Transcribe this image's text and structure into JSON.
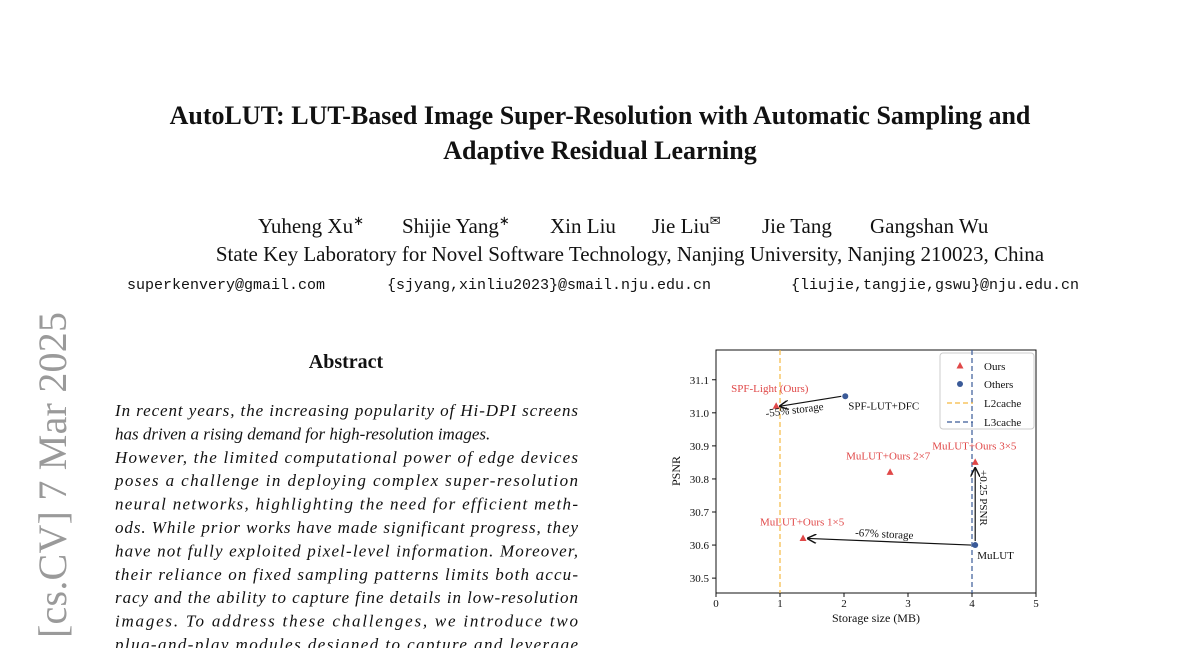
{
  "header": {
    "title_lines": [
      "AutoLUT: LUT-Based Image Super-Resolution with Automatic Sampling and",
      "Adaptive Residual Learning"
    ],
    "authors": [
      {
        "name": "Yuheng Xu",
        "mark": "∗"
      },
      {
        "name": "Shijie Yang",
        "mark": "∗"
      },
      {
        "name": "Xin Liu"
      },
      {
        "name": "Jie Liu",
        "mark": "✉"
      },
      {
        "name": "Jie Tang"
      },
      {
        "name": "Gangshan Wu"
      }
    ],
    "affiliation": "State Key Laboratory for Novel Software Technology, Nanjing University, Nanjing 210023, China",
    "emails": [
      "superkenvery@gmail.com",
      "{sjyang,xinliu2023}@smail.nju.edu.cn",
      "{liujie,tangjie,gswu}@nju.edu.cn"
    ]
  },
  "sidebar": "[cs.CV]  7 Mar 2025",
  "abstract": {
    "heading": "Abstract",
    "lines": [
      "In recent years, the increasing popularity of Hi-DPI screens",
      "has driven a rising demand for high-resolution images.",
      "However, the limited computational power of edge devices",
      "poses a challenge in deploying complex super-resolution",
      "neural networks, highlighting the need for efficient meth-",
      "ods. While prior works have made significant progress, they",
      "have not fully exploited pixel-level information. Moreover,",
      "their reliance on fixed sampling patterns limits both accu-",
      "racy and the ability to capture fine details in low-resolution",
      "images. To address these challenges, we introduce two",
      "plug-and-play modules designed to capture and leverage"
    ]
  },
  "chart_data": {
    "type": "scatter",
    "xlabel": "Storage size (MB)",
    "ylabel": "PSNR",
    "xlim": [
      0,
      5
    ],
    "ylim": [
      30.455,
      31.19
    ],
    "xticks": [
      0,
      1,
      2,
      3,
      4,
      5
    ],
    "yticks": [
      30.5,
      30.6,
      30.7,
      30.8,
      30.9,
      {
        "value": 31,
        "label": "31.0"
      },
      31.1
    ],
    "series": [
      {
        "name": "Ours",
        "color": "#e04848",
        "marker": "triangle",
        "x": [
          0.94,
          2.72,
          4.05,
          1.36
        ],
        "values": [
          31.02,
          30.82,
          30.85,
          30.62
        ],
        "point_labels": [
          "SPF-Light (Ours)",
          "MuLUT+Ours 2×7",
          "MuLUT+Ours 3×5",
          "MuLUT+Ours 1×5"
        ]
      },
      {
        "name": "Others",
        "color": "#3a5a98",
        "marker": "circle",
        "x": [
          2.02,
          4.05
        ],
        "values": [
          31.05,
          30.6
        ],
        "point_labels": [
          "SPF-LUT+DFC",
          "MuLUT"
        ]
      }
    ],
    "reference_lines": [
      {
        "name": "L2cache",
        "color": "#f5b942",
        "x": 1
      },
      {
        "name": "L3cache",
        "color": "#3a5a98",
        "x": 4
      }
    ],
    "annotations": [
      "-55% storage",
      "-67% storage",
      "+0.25 PSNR"
    ],
    "legend": "upper right"
  }
}
